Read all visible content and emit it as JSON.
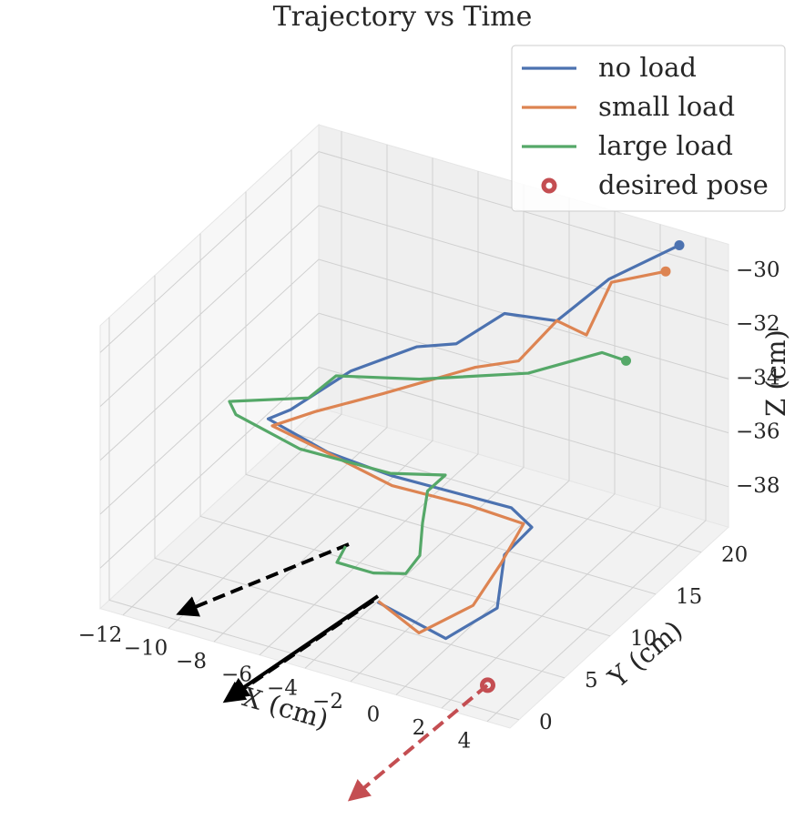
{
  "chart_data": {
    "type": "line3d",
    "title": "Trajectory vs Time",
    "xlabel": "X (cm)",
    "ylabel": "Y (cm)",
    "zlabel": "Z (cm)",
    "xlim": [
      -13,
      5
    ],
    "ylim": [
      -1,
      23
    ],
    "zlim": [
      -39.5,
      -29
    ],
    "xticks": [
      {
        "value": -12,
        "label": "−12"
      },
      {
        "value": -10,
        "label": "−10"
      },
      {
        "value": -8,
        "label": "−8"
      },
      {
        "value": -6,
        "label": "−6"
      },
      {
        "value": -4,
        "label": "−4"
      },
      {
        "value": -2,
        "label": "−2"
      },
      0,
      2,
      4
    ],
    "yticks": [
      0,
      5,
      10,
      15,
      20
    ],
    "zticks": [
      {
        "value": -38,
        "label": "−38"
      },
      {
        "value": -36,
        "label": "−36"
      },
      {
        "value": -34,
        "label": "−34"
      },
      {
        "value": -32,
        "label": "−32"
      },
      {
        "value": -30,
        "label": "−30"
      }
    ],
    "grid": true,
    "legend": "upper right",
    "series": [
      {
        "name": "no load",
        "color": "#4c72b0",
        "x": [
          3.2,
          1.3,
          0.1,
          -2.4,
          -3.4,
          -5.1,
          -6.9,
          -8.0,
          -8.9,
          -6.7,
          -4.7,
          -0.5,
          0.4,
          0.0,
          1.2,
          0.1,
          -3.5
        ],
        "y": [
          22.1,
          19.1,
          16.4,
          16.9,
          14.1,
          14.0,
          11.3,
          7.4,
          7.2,
          8.2,
          10.2,
          12.9,
          12.9,
          10.9,
          7.1,
          4.2,
          5.7
        ],
        "z": [
          -29.2,
          -30,
          -31,
          -31.5,
          -32,
          -32.5,
          -33,
          -33.5,
          -34,
          -35,
          -36,
          -37,
          -37.5,
          -38,
          -38.5,
          -39,
          -39
        ]
      },
      {
        "name": "small load",
        "color": "#dd8452",
        "x": [
          3.4,
          1.5,
          1.6,
          -0.1,
          -0.7,
          -2.4,
          -5.5,
          -7.6,
          -9.0,
          -6.8,
          -4.5,
          -2.0,
          0.0,
          0.2,
          0.3,
          -1.0,
          -3.5
        ],
        "y": [
          20.1,
          18.9,
          15.9,
          16.9,
          14.2,
          13.7,
          11.3,
          9.1,
          7.9,
          8.6,
          9.8,
          12.0,
          13.0,
          10.0,
          6.7,
          4.0,
          5.8
        ],
        "z": [
          -29.5,
          -30,
          -31,
          -31.2,
          -32,
          -32.5,
          -33.5,
          -34,
          -34.5,
          -35.2,
          -36.2,
          -37,
          -37.5,
          -38,
          -38.5,
          -39,
          -39
        ]
      },
      {
        "name": "large load",
        "color": "#55a868",
        "x": [
          1.9,
          0.8,
          -1.4,
          -5.3,
          -8.2,
          -8.8,
          -11.8,
          -11.6,
          -8.7,
          -5.3,
          -3.4,
          -3.9,
          -3.4,
          -2.8,
          -3.1,
          -4.2,
          -5.8,
          -6.1
        ],
        "y": [
          19.5,
          19.6,
          17.0,
          14.8,
          12.9,
          11.4,
          10.2,
          10.4,
          10.2,
          11.6,
          12.9,
          12.2,
          10.4,
          8.6,
          7.8,
          7.0,
          7.0,
          8.7
        ],
        "z": [
          -33,
          -33,
          -33.5,
          -34,
          -34,
          -34.5,
          -35,
          -35.5,
          -36,
          -36.5,
          -36.5,
          -37,
          -37.5,
          -38,
          -38.5,
          -38.5,
          -38.5,
          -38.5
        ]
      },
      {
        "name": "desired pose",
        "color": "#c44e52",
        "marker": "ring",
        "x": [
          2.7
        ],
        "y": [
          2.3
        ],
        "z": [
          -39.5
        ]
      }
    ]
  }
}
